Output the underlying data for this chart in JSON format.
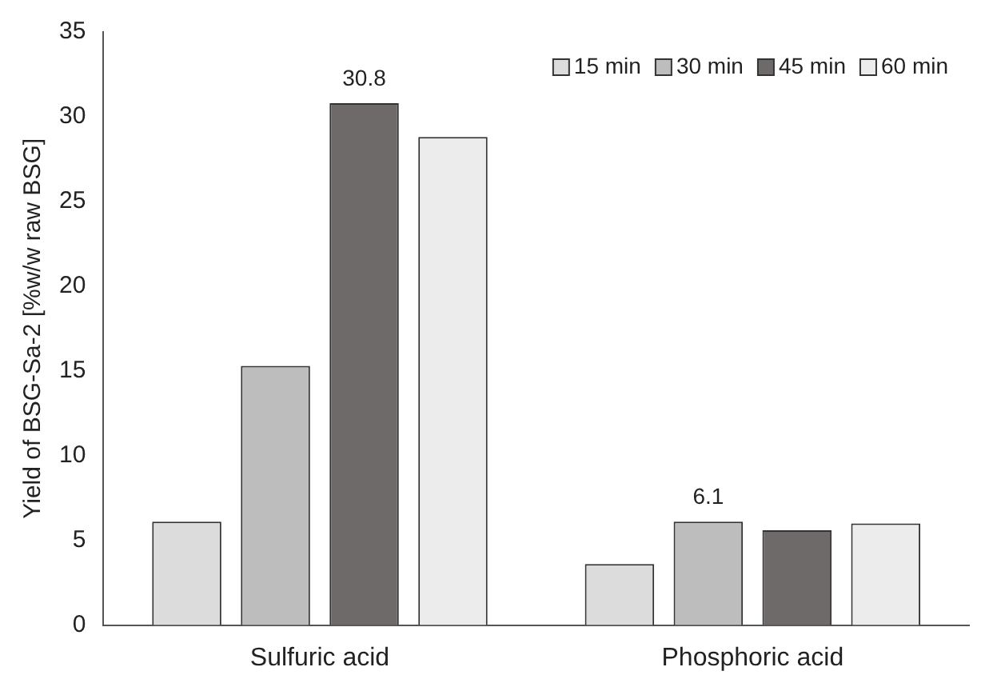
{
  "chart_data": {
    "type": "bar",
    "ylabel": "Yield of BSG-Sa-2 [%w/w raw BSG]",
    "categories": [
      "Sulfuric acid",
      "Phosphoric acid"
    ],
    "ylim": [
      0,
      35
    ],
    "yticks": [
      0,
      5,
      10,
      15,
      20,
      25,
      30,
      35
    ],
    "grid": false,
    "legend": "top right",
    "series": [
      {
        "name": "15 min",
        "color": "#dcdcdc",
        "values": [
          6.1,
          3.6
        ]
      },
      {
        "name": "30 min",
        "color": "#bdbdbd",
        "values": [
          15.3,
          6.1
        ],
        "value_labels": [
          null,
          "6.1"
        ]
      },
      {
        "name": "45 min",
        "color": "#6f6a6a",
        "values": [
          30.8,
          5.6
        ],
        "value_labels": [
          "30.8",
          null
        ]
      },
      {
        "name": "60 min",
        "color": "#ececec",
        "values": [
          28.8,
          6.0
        ]
      }
    ]
  }
}
